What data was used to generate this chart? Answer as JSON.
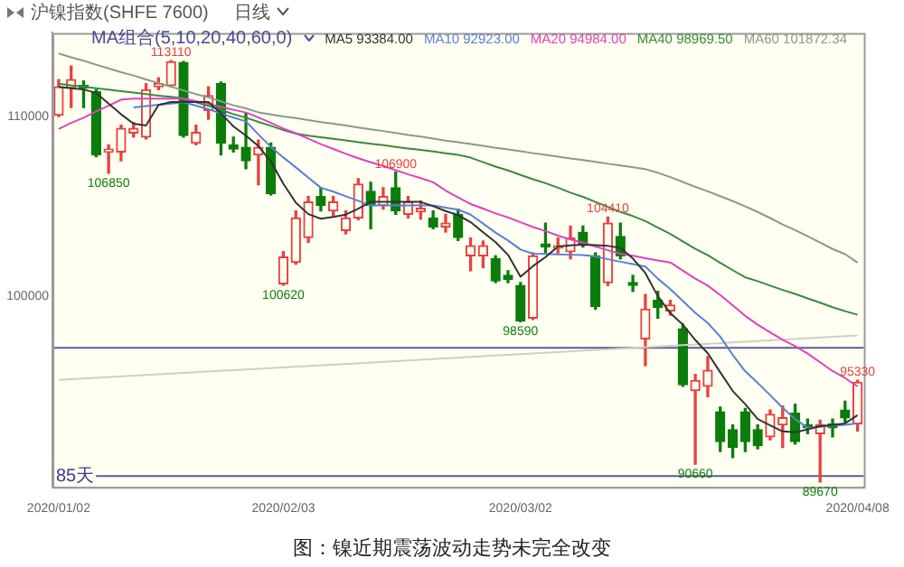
{
  "chart_data": {
    "type": "candlestick",
    "title": "沪镍指数(SHFE 7600)",
    "subtitle": "日线",
    "legend_title": "MA组合(5,10,20,40,60,0)",
    "legend": "top",
    "grid": "y",
    "categories": [
      "2020/01/02",
      null,
      null,
      null,
      null,
      null,
      null,
      null,
      null,
      null,
      null,
      null,
      null,
      null,
      null,
      null,
      null,
      null,
      "2020/02/03",
      null,
      null,
      null,
      null,
      null,
      null,
      null,
      null,
      null,
      null,
      null,
      null,
      null,
      null,
      null,
      null,
      null,
      null,
      "2020/03/02",
      null,
      null,
      null,
      null,
      null,
      null,
      null,
      null,
      null,
      null,
      null,
      null,
      null,
      null,
      null,
      null,
      null,
      null,
      null,
      null,
      null,
      null,
      null,
      null,
      null,
      null,
      "2020/04/08"
    ],
    "ohlc": [
      [
        110070,
        112050,
        110000,
        111650
      ],
      [
        111580,
        112800,
        110500,
        112050
      ],
      [
        111720,
        111980,
        110500,
        111580
      ],
      [
        111390,
        111490,
        107760,
        107860
      ],
      [
        108020,
        108420,
        106850,
        108190
      ],
      [
        108020,
        109510,
        107530,
        109340
      ],
      [
        109080,
        109670,
        108850,
        109340
      ],
      [
        108850,
        111820,
        108750,
        111490
      ],
      [
        111650,
        112150,
        111490,
        111820
      ],
      [
        111720,
        113110,
        111650,
        113040
      ],
      [
        113000,
        113050,
        108850,
        108940
      ],
      [
        108520,
        109510,
        108420,
        109110
      ],
      [
        110330,
        111650,
        109840,
        111160
      ],
      [
        111820,
        111910,
        107860,
        108520
      ],
      [
        108420,
        108850,
        108020,
        108190
      ],
      [
        108280,
        110170,
        107100,
        107530
      ],
      [
        107860,
        108680,
        106210,
        108280
      ],
      [
        108280,
        108520,
        105640,
        105710
      ],
      [
        100690,
        102480,
        100620,
        102180
      ],
      [
        101880,
        104750,
        101780,
        104360
      ],
      [
        103270,
        105550,
        103000,
        105250
      ],
      [
        105550,
        106040,
        104750,
        105050
      ],
      [
        104750,
        105550,
        104460,
        105250
      ],
      [
        103660,
        104750,
        103470,
        104360
      ],
      [
        104360,
        106540,
        104260,
        106240
      ],
      [
        105840,
        106340,
        103760,
        105050
      ],
      [
        105050,
        106040,
        104850,
        105550
      ],
      [
        106040,
        106900,
        104560,
        104750
      ],
      [
        104560,
        105550,
        104360,
        105250
      ],
      [
        104700,
        105300,
        104300,
        104900
      ],
      [
        104360,
        104750,
        103760,
        103860
      ],
      [
        103860,
        104560,
        103570,
        104060
      ],
      [
        104560,
        104850,
        103100,
        103270
      ],
      [
        102250,
        103240,
        101420,
        102810
      ],
      [
        102250,
        103070,
        101590,
        102810
      ],
      [
        102080,
        102250,
        100760,
        100860
      ],
      [
        101160,
        101420,
        100760,
        100930
      ],
      [
        100600,
        100760,
        98590,
        98620
      ],
      [
        98780,
        102410,
        98710,
        102250
      ],
      [
        102910,
        104060,
        102410,
        102740
      ],
      [
        102670,
        103240,
        102410,
        102810
      ],
      [
        102480,
        103900,
        102080,
        103240
      ],
      [
        103570,
        103900,
        102740,
        102910
      ],
      [
        102250,
        102410,
        99280,
        99440
      ],
      [
        100760,
        104410,
        100600,
        104060
      ],
      [
        103330,
        104060,
        102080,
        102250
      ],
      [
        100760,
        101160,
        100270,
        100600
      ],
      [
        97630,
        100100,
        96140,
        99280
      ],
      [
        99770,
        100270,
        98780,
        99370
      ],
      [
        99180,
        99770,
        98950,
        99510
      ],
      [
        98190,
        98450,
        94990,
        95080
      ],
      [
        94750,
        95650,
        90660,
        95320
      ],
      [
        94990,
        96640,
        94420,
        95880
      ],
      [
        93570,
        93830,
        91360,
        91920
      ],
      [
        92580,
        92840,
        91030,
        91590
      ],
      [
        93570,
        93760,
        91360,
        91920
      ],
      [
        92580,
        92840,
        91520,
        91690
      ],
      [
        92180,
        93670,
        92020,
        93430
      ],
      [
        92840,
        93900,
        91590,
        93240
      ],
      [
        93500,
        94000,
        91780,
        91920
      ],
      [
        92840,
        93170,
        92350,
        92680
      ],
      [
        92350,
        93100,
        89670,
        92840
      ],
      [
        92910,
        93170,
        92180,
        92680
      ],
      [
        93670,
        94160,
        93010,
        93240
      ],
      [
        92910,
        95330,
        92510,
        95220
      ]
    ],
    "colors": [
      "#e8413e",
      "#e8413e",
      "#0b7d0b",
      "#0b7d0b",
      "#e8413e",
      "#e8413e",
      "#e8413e",
      "#e8413e",
      "#e8413e",
      "#e8413e",
      "#0b7d0b",
      "#e8413e",
      "#e8413e",
      "#0b7d0b",
      "#0b7d0b",
      "#0b7d0b",
      "#e8413e",
      "#0b7d0b",
      "#e8413e",
      "#e8413e",
      "#e8413e",
      "#0b7d0b",
      "#e8413e",
      "#e8413e",
      "#e8413e",
      "#0b7d0b",
      "#e8413e",
      "#0b7d0b",
      "#e8413e",
      "#e8413e",
      "#0b7d0b",
      "#e8413e",
      "#0b7d0b",
      "#e8413e",
      "#e8413e",
      "#0b7d0b",
      "#0b7d0b",
      "#0b7d0b",
      "#e8413e",
      "#0b7d0b",
      "#e8413e",
      "#e8413e",
      "#0b7d0b",
      "#0b7d0b",
      "#e8413e",
      "#0b7d0b",
      "#0b7d0b",
      "#e8413e",
      "#0b7d0b",
      "#e8413e",
      "#0b7d0b",
      "#e8413e",
      "#e8413e",
      "#0b7d0b",
      "#0b7d0b",
      "#0b7d0b",
      "#0b7d0b",
      "#e8413e",
      "#e8413e",
      "#0b7d0b",
      "#0b7d0b",
      "#e8413e",
      "#0b7d0b",
      "#0b7d0b",
      "#e8413e"
    ],
    "series": [
      {
        "type": "line",
        "name": "MA5 93384.00",
        "color": "#333333",
        "values": [
          111650,
          111570,
          111500,
          111310,
          110710,
          110120,
          109600,
          109500,
          110640,
          110800,
          110800,
          110800,
          110800,
          110170,
          109450,
          108930,
          108350,
          107500,
          106260,
          105200,
          104570,
          104310,
          104410,
          104540,
          104870,
          105248,
          105250,
          105250,
          105250,
          105250,
          105010,
          104740,
          104510,
          104120,
          103560,
          103010,
          102300,
          101090,
          101680,
          102180,
          102770,
          102830,
          102870,
          102840,
          102800,
          102690,
          102100,
          101290,
          100000,
          99060,
          98420,
          97570,
          96830,
          95770,
          94730,
          94000,
          93170,
          92820,
          92480,
          92430,
          92600,
          92770,
          92840,
          92930,
          93384
        ]
      },
      {
        "type": "line",
        "name": "MA10 92923.00",
        "color": "#5b7fd6",
        "values": [
          null,
          null,
          null,
          null,
          null,
          null,
          110500,
          110580,
          110650,
          110720,
          110790,
          110600,
          110400,
          110170,
          109940,
          109730,
          109000,
          108310,
          107720,
          107170,
          106600,
          106040,
          105820,
          105560,
          105310,
          105050,
          105050,
          105050,
          105050,
          105050,
          105050,
          104930,
          104820,
          104540,
          104040,
          103540,
          103100,
          102600,
          102370,
          102350,
          102330,
          102310,
          102290,
          102210,
          102060,
          101920,
          101790,
          101650,
          100980,
          100400,
          99740,
          99080,
          98510,
          97750,
          96740,
          95820,
          95180,
          94500,
          93790,
          93170,
          92680,
          92740,
          92800,
          92850,
          92923
        ]
      },
      {
        "type": "line",
        "name": "MA20 94984.00",
        "color": "#e040c0",
        "values": [
          109300,
          109640,
          109930,
          110280,
          110600,
          110940,
          110990,
          110990,
          110990,
          110990,
          110990,
          110850,
          110700,
          110530,
          110370,
          110220,
          109940,
          109640,
          109330,
          109070,
          108760,
          108460,
          108190,
          107920,
          107680,
          107450,
          107250,
          107010,
          106780,
          106570,
          106340,
          105880,
          105500,
          105130,
          104880,
          104610,
          104380,
          104120,
          103850,
          103630,
          103370,
          103160,
          102980,
          102770,
          102560,
          102360,
          102250,
          102120,
          101990,
          101880,
          101430,
          100980,
          100590,
          100070,
          99490,
          98910,
          98420,
          97990,
          97580,
          97230,
          96810,
          96330,
          95840,
          95450,
          94984
        ]
      },
      {
        "type": "line",
        "name": "MA40 98969.50",
        "color": "#3a8a3a",
        "values": [
          111820,
          111730,
          111660,
          111570,
          111490,
          111410,
          111330,
          111240,
          111160,
          111090,
          111000,
          110790,
          110590,
          110370,
          110130,
          109930,
          109700,
          109480,
          109240,
          109040,
          108930,
          108840,
          108760,
          108670,
          108570,
          108480,
          108400,
          108310,
          108220,
          108140,
          108050,
          107950,
          107870,
          107710,
          107460,
          107210,
          107000,
          106750,
          106510,
          106290,
          106040,
          105760,
          105530,
          105250,
          104970,
          104690,
          104460,
          104180,
          103820,
          103470,
          103050,
          102640,
          102280,
          101860,
          101450,
          101050,
          100840,
          100590,
          100350,
          100130,
          99880,
          99640,
          99390,
          99170,
          98969.5
        ]
      },
      {
        "type": "line",
        "name": "MA60 101872.34",
        "color": "#8a9a8a",
        "values": [
          113500,
          113290,
          113100,
          112880,
          112670,
          112460,
          112280,
          112060,
          111850,
          111660,
          111450,
          111240,
          111060,
          110840,
          110620,
          110450,
          110230,
          110110,
          110000,
          109910,
          109800,
          109690,
          109600,
          109500,
          109390,
          109280,
          109190,
          109080,
          108970,
          108880,
          108770,
          108660,
          108570,
          108470,
          108370,
          108260,
          108170,
          108070,
          107960,
          107870,
          107770,
          107660,
          107580,
          107480,
          107370,
          107270,
          107180,
          107070,
          106870,
          106630,
          106360,
          106080,
          105840,
          105570,
          105290,
          105000,
          104690,
          104350,
          103990,
          103680,
          103340,
          102990,
          102630,
          102340,
          101872.34
        ]
      },
      {
        "type": "line",
        "color": "#cfcfc4",
        "x": [
          "2020/01/02",
          "2020/04/08"
        ],
        "values": [
          95350,
          97820
        ]
      }
    ],
    "ylim": [
      89400,
      114650
    ],
    "yticks": [
      100000,
      110000
    ],
    "ref_lines": [
      {
        "axis": "y",
        "value": 97130,
        "color": "#5a5aa0"
      },
      {
        "axis": "y",
        "value": 90000,
        "color": "#5a5aa0"
      }
    ],
    "annotations": [
      {
        "text": "113110",
        "y": 113110
      },
      {
        "text": "106850",
        "y": 106850
      },
      {
        "text": "106900",
        "y": 106900
      },
      {
        "text": "100620",
        "y": 100620
      },
      {
        "text": "104410",
        "y": 104410
      },
      {
        "text": "98590",
        "y": 98590
      },
      {
        "text": "90660",
        "y": 90660
      },
      {
        "text": "89670",
        "y": 89670
      },
      {
        "text": "95330",
        "y": 95330
      },
      "85天",
      "图：镍近期震荡波动走势未完全改变"
    ]
  }
}
